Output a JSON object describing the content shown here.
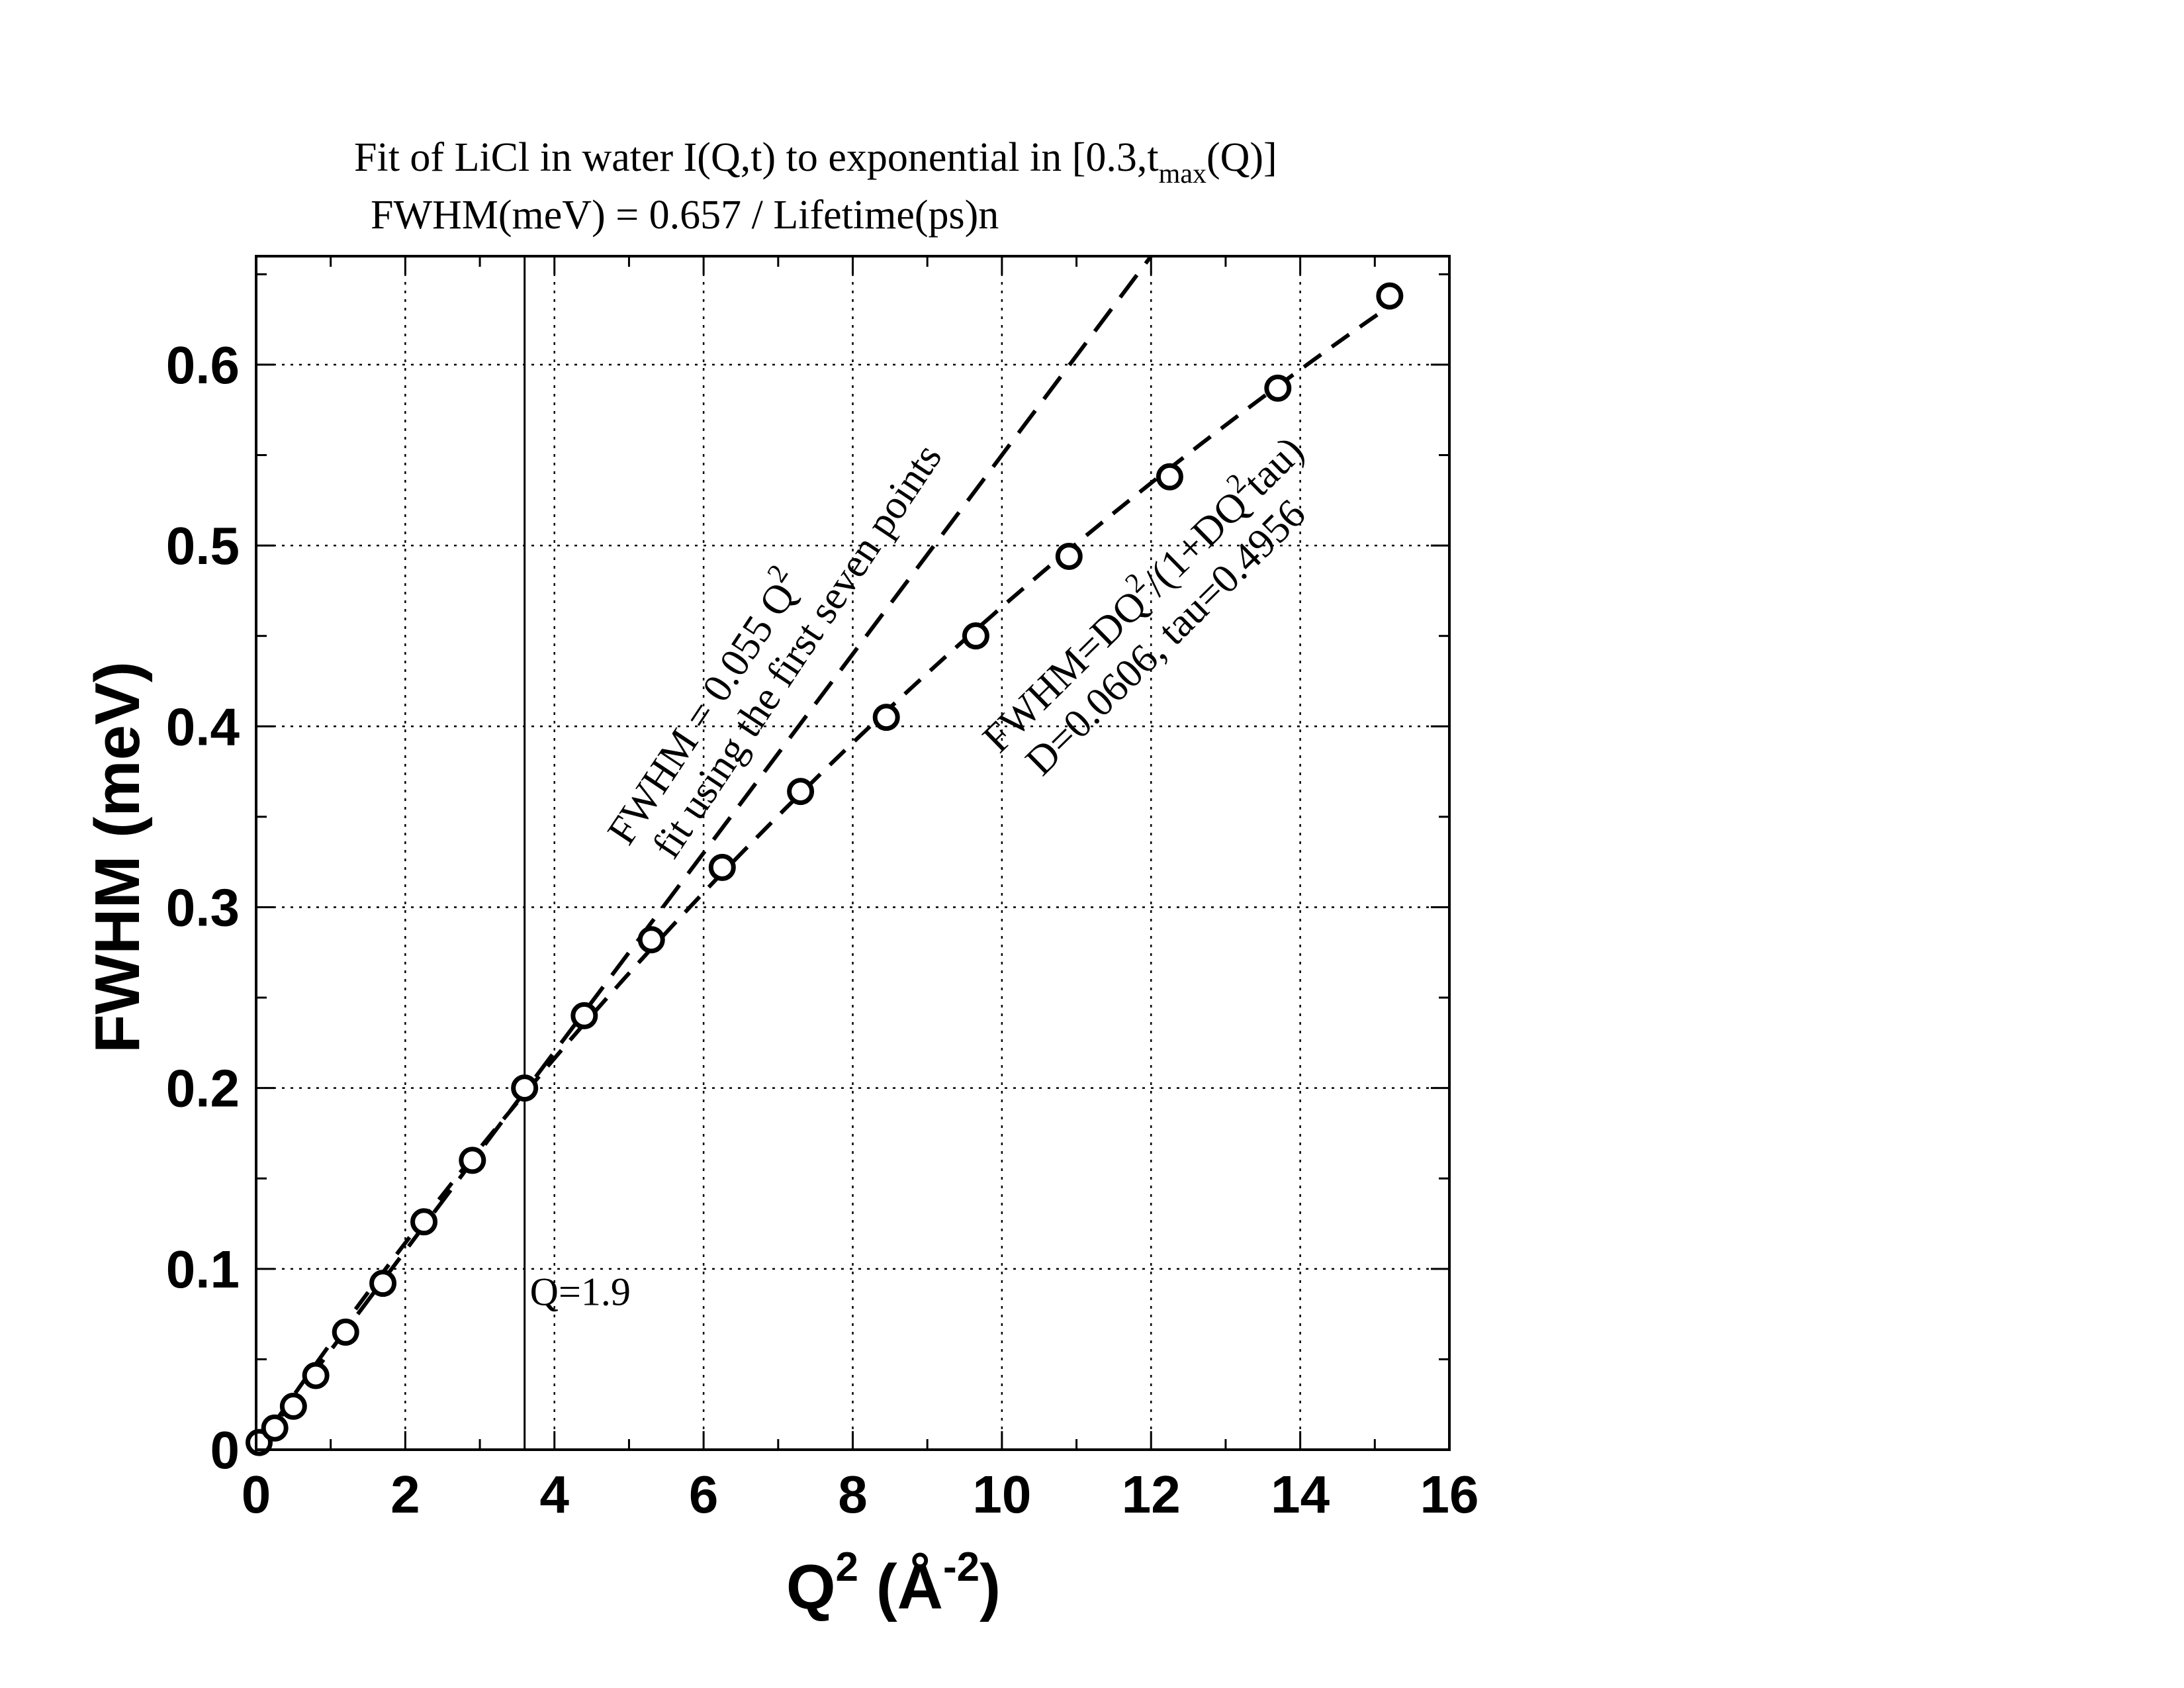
{
  "chart_data": {
    "type": "scatter",
    "title_line1": {
      "main": "Fit of LiCl in water I(Q,t) to exponential in [0.3,t",
      "sub": "max",
      "end": "(Q)]"
    },
    "title_line2": "FWHM(meV) = 0.657 / Lifetime(ps)n",
    "xlabel": {
      "base": "Q",
      "sup1": "2",
      "mid": " (Å",
      "sup2": "-2",
      "end": ")"
    },
    "ylabel": "FWHM (meV)",
    "xlim": [
      0,
      16
    ],
    "ylim": [
      0,
      0.66
    ],
    "x_ticks": [
      0,
      2,
      4,
      6,
      8,
      10,
      12,
      14,
      16
    ],
    "x_tick_labels": [
      "0",
      "2",
      "4",
      "6",
      "8",
      "10",
      "12",
      "14",
      "16"
    ],
    "y_ticks": [
      0,
      0.1,
      0.2,
      0.3,
      0.4,
      0.5,
      0.6
    ],
    "y_tick_labels": [
      "0",
      "0.1",
      "0.2",
      "0.3",
      "0.4",
      "0.5",
      "0.6"
    ],
    "x_minor_step": 1,
    "y_minor_step": 0.05,
    "grid": true,
    "points": [
      {
        "x": 0.04,
        "y": 0.004
      },
      {
        "x": 0.25,
        "y": 0.012
      },
      {
        "x": 0.5,
        "y": 0.024
      },
      {
        "x": 0.8,
        "y": 0.041
      },
      {
        "x": 1.2,
        "y": 0.065
      },
      {
        "x": 1.7,
        "y": 0.092
      },
      {
        "x": 2.25,
        "y": 0.126
      },
      {
        "x": 2.9,
        "y": 0.16
      },
      {
        "x": 3.6,
        "y": 0.2
      },
      {
        "x": 4.4,
        "y": 0.24
      },
      {
        "x": 5.3,
        "y": 0.282
      },
      {
        "x": 6.25,
        "y": 0.322
      },
      {
        "x": 7.3,
        "y": 0.364
      },
      {
        "x": 8.45,
        "y": 0.405
      },
      {
        "x": 9.65,
        "y": 0.45
      },
      {
        "x": 10.9,
        "y": 0.494
      },
      {
        "x": 12.25,
        "y": 0.538
      },
      {
        "x": 13.7,
        "y": 0.587
      },
      {
        "x": 15.2,
        "y": 0.638
      }
    ],
    "fits": {
      "linear": {
        "slope": 0.055
      },
      "saturation": {
        "D": 0.0606,
        "tau": 0.4956
      }
    },
    "vline": {
      "x": 3.6,
      "label": "Q=1.9"
    },
    "annotations": {
      "linear_line1": {
        "base": "FWHM = 0.055 Q",
        "sup": "2"
      },
      "linear_line2": "fit using the first seven points",
      "sat_line1": {
        "a": "FWHM=DQ",
        "sup1": "2",
        "b": "/(1+DQ",
        "sup2": "2",
        "c": "tau)"
      },
      "sat_line2": "D=0.0606, tau=0.4956"
    },
    "colors": {
      "ink": "#000000",
      "background": "#ffffff"
    }
  }
}
